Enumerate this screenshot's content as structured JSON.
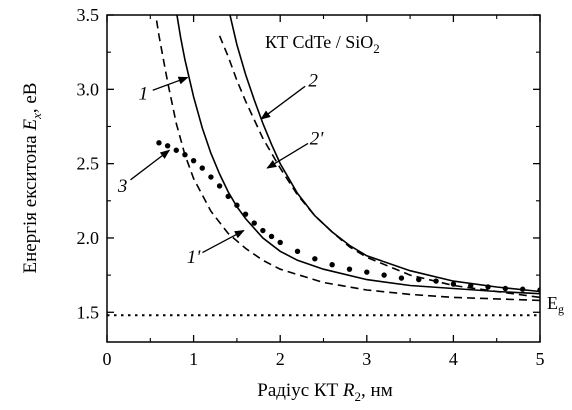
{
  "chart_data": {
    "type": "line",
    "title": "КТ CdTe / SiO",
    "title_sub": "2",
    "xlabel_prefix": "Радіус КТ ",
    "xlabel_var": "R",
    "xlabel_sub": "2",
    "xlabel_suffix": ",  нм",
    "ylabel_prefix": "Енергія екситона ",
    "ylabel_var": "E",
    "ylabel_sub": "x",
    "ylabel_suffix": ", еВ",
    "xlim": [
      0,
      5
    ],
    "ylim": [
      1.3,
      3.5
    ],
    "xticks": [
      0,
      1,
      2,
      3,
      4,
      5
    ],
    "xtick_labels": [
      "0",
      "1",
      "2",
      "3",
      "4",
      "5"
    ],
    "yticks": [
      1.5,
      2.0,
      2.5,
      3.0,
      3.5
    ],
    "ytick_labels": [
      "1.5",
      "2.0",
      "2.5",
      "3.0",
      "3.5"
    ],
    "reference_line": {
      "y": 1.48,
      "label": "E",
      "label_sub": "g",
      "style": "dotted"
    },
    "series": [
      {
        "label": "1",
        "style": "solid",
        "x": [
          0.78,
          0.85,
          0.9,
          1.0,
          1.1,
          1.2,
          1.3,
          1.4,
          1.5,
          1.6,
          1.8,
          2.0,
          2.2,
          2.5,
          3.0,
          3.5,
          4.0,
          4.5,
          5.0
        ],
        "y": [
          3.6,
          3.35,
          3.2,
          2.95,
          2.74,
          2.57,
          2.43,
          2.31,
          2.21,
          2.13,
          2.0,
          1.91,
          1.85,
          1.79,
          1.72,
          1.68,
          1.66,
          1.64,
          1.625
        ]
      },
      {
        "label": "1'",
        "style": "dashed",
        "x": [
          0.55,
          0.6,
          0.7,
          0.8,
          0.9,
          1.0,
          1.2,
          1.4,
          1.6,
          1.8,
          2.0,
          2.5,
          3.0,
          3.5,
          4.0,
          4.5,
          5.0
        ],
        "y": [
          3.55,
          3.36,
          3.05,
          2.77,
          2.56,
          2.4,
          2.18,
          2.03,
          1.93,
          1.85,
          1.79,
          1.7,
          1.65,
          1.62,
          1.6,
          1.59,
          1.58
        ]
      },
      {
        "label": "2",
        "style": "solid",
        "x": [
          1.38,
          1.5,
          1.6,
          1.7,
          1.8,
          1.9,
          2.0,
          2.2,
          2.4,
          2.6,
          2.8,
          3.0,
          3.5,
          4.0,
          4.5,
          5.0
        ],
        "y": [
          3.6,
          3.3,
          3.1,
          2.93,
          2.77,
          2.63,
          2.5,
          2.3,
          2.15,
          2.04,
          1.95,
          1.88,
          1.78,
          1.71,
          1.67,
          1.64
        ]
      },
      {
        "label": "2'",
        "style": "dashed",
        "x": [
          1.3,
          1.4,
          1.5,
          1.6,
          1.8,
          2.0,
          2.2,
          2.4,
          2.6,
          2.8,
          3.0,
          3.5,
          4.0,
          4.5,
          5.0
        ],
        "y": [
          3.36,
          3.22,
          3.06,
          2.92,
          2.67,
          2.47,
          2.29,
          2.15,
          2.04,
          1.94,
          1.87,
          1.75,
          1.68,
          1.64,
          1.6
        ]
      },
      {
        "label": "3",
        "style": "dotted",
        "x": [
          0.6,
          0.7,
          0.8,
          0.9,
          1.0,
          1.1,
          1.2,
          1.3,
          1.4,
          1.5,
          1.6,
          1.7,
          1.8,
          1.9,
          2.0,
          2.2,
          2.4,
          2.6,
          2.8,
          3.0,
          3.2,
          3.4,
          3.6,
          3.8,
          4.0,
          4.2,
          4.4,
          4.6,
          4.8,
          5.0
        ],
        "y": [
          2.64,
          2.62,
          2.59,
          2.56,
          2.52,
          2.47,
          2.41,
          2.35,
          2.28,
          2.22,
          2.16,
          2.1,
          2.05,
          2.01,
          1.97,
          1.91,
          1.86,
          1.82,
          1.79,
          1.77,
          1.75,
          1.73,
          1.72,
          1.71,
          1.69,
          1.68,
          1.67,
          1.66,
          1.655,
          1.65
        ]
      }
    ],
    "annotations": [
      {
        "text": "1",
        "x": 0.42,
        "y": 2.93,
        "arrow_to": [
          0.93,
          3.08
        ]
      },
      {
        "text": "1'",
        "x": 1.0,
        "y": 1.83,
        "arrow_to": [
          1.58,
          2.05
        ]
      },
      {
        "text": "2",
        "x": 2.38,
        "y": 3.02,
        "arrow_to": [
          1.78,
          2.8
        ]
      },
      {
        "text": "2'",
        "x": 2.42,
        "y": 2.63,
        "arrow_to": [
          1.85,
          2.47
        ]
      },
      {
        "text": "3",
        "x": 0.18,
        "y": 2.31,
        "arrow_to": [
          0.72,
          2.59
        ]
      }
    ],
    "grid": false
  }
}
